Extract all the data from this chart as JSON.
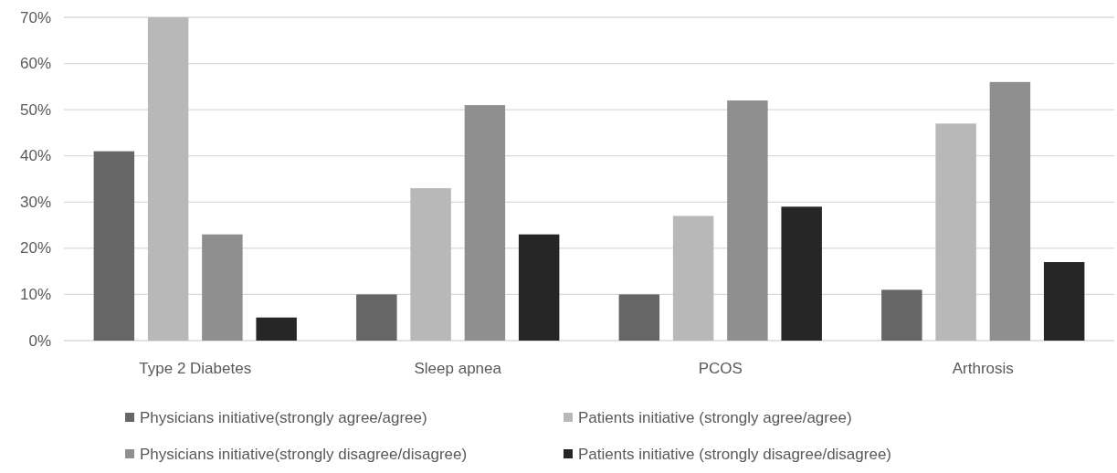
{
  "chart_data": {
    "type": "bar",
    "categories": [
      "Type 2 Diabetes",
      "Sleep apnea",
      "PCOS",
      "Arthrosis"
    ],
    "series": [
      {
        "name": "Physicians initiative(strongly agree/agree)",
        "color": "#666666",
        "values": [
          41,
          10,
          10,
          11
        ]
      },
      {
        "name": "Patients initiative (strongly agree/agree)",
        "color": "#b8b8b8",
        "values": [
          70,
          33,
          27,
          47
        ]
      },
      {
        "name": "Physicians initiative(strongly disagree/disagree)",
        "color": "#8f8f8f",
        "values": [
          23,
          51,
          52,
          56
        ]
      },
      {
        "name": "Patients initiative (strongly disagree/disagree)",
        "color": "#262626",
        "values": [
          5,
          23,
          29,
          17
        ]
      }
    ],
    "ylim": [
      0,
      70
    ],
    "yticks": [
      {
        "value": 0,
        "label": "0%"
      },
      {
        "value": 10,
        "label": "10%"
      },
      {
        "value": 20,
        "label": "20%"
      },
      {
        "value": 30,
        "label": "30%"
      },
      {
        "value": 40,
        "label": "40%"
      },
      {
        "value": 50,
        "label": "50%"
      },
      {
        "value": 60,
        "label": "60%"
      },
      {
        "value": 70,
        "label": "70%"
      }
    ],
    "grid": "y",
    "legend": "bottom"
  }
}
